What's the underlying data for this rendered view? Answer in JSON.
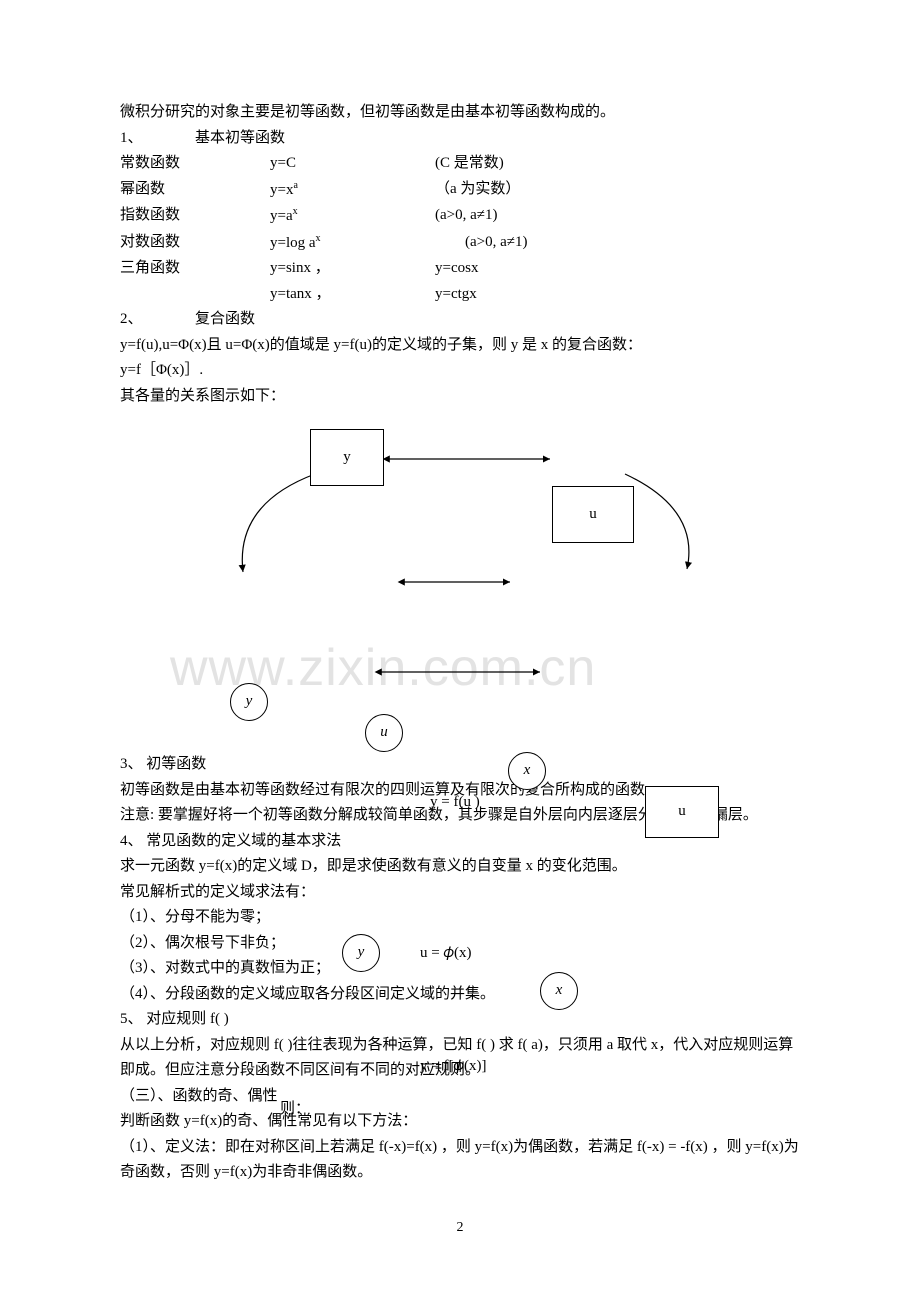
{
  "intro": "微积分研究的对象主要是初等函数，但初等函数是由基本初等函数构成的。",
  "s1": {
    "num": "1、",
    "title": "基本初等函数",
    "rows": [
      {
        "a": "常数函数",
        "b": "y=C",
        "c": "(C 是常数)"
      },
      {
        "a": "幂函数",
        "b": "y=x",
        "bsup": "a",
        "c": "（a 为实数）"
      },
      {
        "a": "指数函数",
        "b": "y=a",
        "bsup": "x",
        "c": "(a>0, a≠1)"
      },
      {
        "a": "对数函数",
        "b": "y=log a",
        "bsup": "x",
        "c": "(a>0, a≠1)",
        "indent": true
      },
      {
        "a": "三角函数",
        "b": "y=sinx ，",
        "c": "y=cosx"
      },
      {
        "a": "",
        "b": "y=tanx ，",
        "c": "y=ctgx"
      }
    ]
  },
  "s2": {
    "num": "2、",
    "title": "复合函数",
    "line1": "y=f(u),u=Φ(x)且 u=Φ(x)的值域是 y=f(u)的定义域的子集，则 y 是 x 的复合函数：",
    "line2": "y=f［Φ(x)］.",
    "line3": "其各量的关系图示如下："
  },
  "diagram": {
    "watermark": "www.zixin.com.cn",
    "box_y": "y",
    "box_u": "u",
    "circ_y1": "y",
    "circ_u": "u",
    "circ_x1": "x",
    "circ_u2": "u",
    "circ_y2": "y",
    "circ_x2": "x",
    "lbl_top": "y = f(u )",
    "lbl_mid": "u = 𝜙(x)",
    "lbl_bot": "y = f[𝜙(x)]",
    "lbl_then": "则："
  },
  "s3": {
    "num": "3、",
    "title": "初等函数",
    "p1": "初等函数是由基本初等函数经过有限次的四则运算及有限次的复合所构成的函数。",
    "p2": "注意: 要掌握好将一个初等函数分解成较简单函数，其步骤是自外层向内层逐层分解，切忌漏层。"
  },
  "s4": {
    "num": "4、",
    "title": "常见函数的定义域的基本求法",
    "p1": "求一元函数 y=f(x)的定义域 D，即是求使函数有意义的自变量 x 的变化范围。",
    "p2": "常见解析式的定义域求法有：",
    "i1": "（1）、分母不能为零；",
    "i2": "（2）、偶次根号下非负；",
    "i3": "（3）、对数式中的真数恒为正；",
    "i4": "（4）、分段函数的定义域应取各分段区间定义域的并集。"
  },
  "s5": {
    "num": "5、",
    "title": "对应规则 f( )",
    "p1": "从以上分析，对应规则 f( )往往表现为各种运算，已知 f( ) 求 f( a)，只须用 a 取代 x，代入对应规则运算即成。但应注意分段函数不同区间有不同的对应规则。"
  },
  "s6": {
    "title": "（三）、函数的奇、偶性",
    "p1": "判断函数 y=f(x)的奇、偶性常见有以下方法：",
    "p2": "（1）、定义法：即在对称区间上若满足 f(-x)=f(x) ，则 y=f(x)为偶函数，若满足 f(-x) = -f(x) ，则 y=f(x)为奇函数，否则 y=f(x)为非奇非偶函数。"
  },
  "pagenum": "2"
}
